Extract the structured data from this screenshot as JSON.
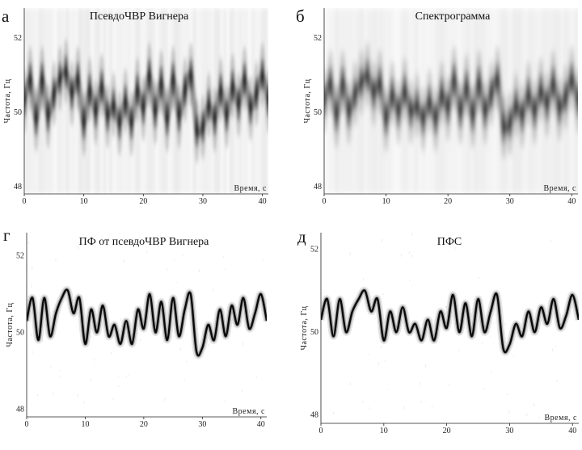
{
  "figure": {
    "panels": [
      {
        "letter": "а",
        "title": "ПсевдоЧВР Вигнера"
      },
      {
        "letter": "б",
        "title": "Спектрограмма"
      },
      {
        "letter": "г",
        "title": "ПФ от псевдоЧВР Вигнера"
      },
      {
        "letter": "д",
        "title": "ПФС"
      }
    ]
  },
  "chart_data": [
    {
      "type": "heatmap",
      "title": "ПсевдоЧВР Вигнера",
      "panel_label": "а",
      "xlabel": "Время, с",
      "ylabel": "Частота, Гц",
      "xlim": [
        0,
        41
      ],
      "ylim": [
        47.8,
        52.8
      ],
      "xticks": [
        0,
        10,
        20,
        30,
        40
      ],
      "yticks": [
        48,
        50,
        52
      ],
      "colormap": "white-to-black",
      "ridge": {
        "time_s": [
          0,
          1,
          2,
          3,
          4,
          5,
          6,
          7,
          8,
          9,
          10,
          11,
          12,
          13,
          14,
          15,
          16,
          17,
          18,
          19,
          20,
          21,
          22,
          23,
          24,
          25,
          26,
          27,
          28,
          29,
          30,
          31,
          32,
          33,
          34,
          35,
          36,
          37,
          38,
          39,
          40,
          41
        ],
        "freq_hz": [
          50.3,
          50.9,
          49.8,
          50.9,
          49.9,
          50.5,
          50.9,
          51.1,
          50.5,
          50.9,
          49.7,
          50.6,
          50.0,
          50.7,
          49.9,
          50.2,
          49.7,
          50.3,
          49.7,
          50.6,
          50.1,
          51.0,
          50.0,
          50.8,
          49.8,
          50.9,
          49.9,
          50.6,
          51.0,
          49.5,
          49.6,
          50.2,
          49.8,
          50.6,
          49.9,
          50.7,
          50.2,
          50.9,
          50.1,
          50.5,
          51.0,
          50.3
        ]
      }
    },
    {
      "type": "heatmap",
      "title": "Спектрограмма",
      "panel_label": "б",
      "xlabel": "Время, с",
      "ylabel": "Частота, Гц",
      "xlim": [
        0,
        41
      ],
      "ylim": [
        47.8,
        52.8
      ],
      "xticks": [
        0,
        10,
        20,
        30,
        40
      ],
      "yticks": [
        48,
        50,
        52
      ],
      "colormap": "white-to-black",
      "ridge": {
        "time_s": [
          0,
          1,
          2,
          3,
          4,
          5,
          6,
          7,
          8,
          9,
          10,
          11,
          12,
          13,
          14,
          15,
          16,
          17,
          18,
          19,
          20,
          21,
          22,
          23,
          24,
          25,
          26,
          27,
          28,
          29,
          30,
          31,
          32,
          33,
          34,
          35,
          36,
          37,
          38,
          39,
          40,
          41
        ],
        "freq_hz": [
          50.3,
          50.8,
          49.9,
          50.8,
          50.0,
          50.5,
          50.8,
          51.0,
          50.5,
          50.8,
          49.8,
          50.5,
          50.0,
          50.6,
          50.0,
          50.2,
          49.8,
          50.3,
          49.8,
          50.5,
          50.1,
          50.9,
          50.0,
          50.7,
          49.9,
          50.8,
          50.0,
          50.5,
          50.9,
          49.6,
          49.7,
          50.2,
          49.9,
          50.5,
          50.0,
          50.6,
          50.2,
          50.8,
          50.1,
          50.4,
          50.9,
          50.3
        ]
      }
    },
    {
      "type": "line",
      "title": "ПФ от псевдоЧВР Вигнера",
      "panel_label": "г",
      "xlabel": "Время, с",
      "ylabel": "Частота, Гц",
      "xlim": [
        0,
        41
      ],
      "ylim": [
        47.8,
        52.6
      ],
      "xticks": [
        0,
        10,
        20,
        30,
        40
      ],
      "yticks": [
        48,
        50,
        52
      ],
      "series": [
        {
          "x": [
            0,
            1,
            2,
            3,
            4,
            5,
            6,
            7,
            8,
            9,
            10,
            11,
            12,
            13,
            14,
            15,
            16,
            17,
            18,
            19,
            20,
            21,
            22,
            23,
            24,
            25,
            26,
            27,
            28,
            29,
            30,
            31,
            32,
            33,
            34,
            35,
            36,
            37,
            38,
            39,
            40,
            41
          ],
          "values": [
            50.3,
            50.9,
            49.8,
            50.9,
            49.9,
            50.5,
            50.9,
            51.1,
            50.5,
            50.9,
            49.7,
            50.6,
            50.0,
            50.7,
            49.9,
            50.2,
            49.7,
            50.3,
            49.7,
            50.6,
            50.1,
            51.0,
            50.0,
            50.8,
            49.8,
            50.9,
            49.9,
            50.6,
            51.0,
            49.5,
            49.6,
            50.2,
            49.8,
            50.6,
            49.9,
            50.7,
            50.2,
            50.9,
            50.1,
            50.5,
            51.0,
            50.3
          ]
        }
      ]
    },
    {
      "type": "line",
      "title": "ПФС",
      "panel_label": "д",
      "xlabel": "Время, с",
      "ylabel": "Частота, Гц",
      "xlim": [
        0,
        41
      ],
      "ylim": [
        47.8,
        52.4
      ],
      "xticks": [
        0,
        10,
        20,
        30,
        40
      ],
      "yticks": [
        48,
        50,
        52
      ],
      "series": [
        {
          "x": [
            0,
            1,
            2,
            3,
            4,
            5,
            6,
            7,
            8,
            9,
            10,
            11,
            12,
            13,
            14,
            15,
            16,
            17,
            18,
            19,
            20,
            21,
            22,
            23,
            24,
            25,
            26,
            27,
            28,
            29,
            30,
            31,
            32,
            33,
            34,
            35,
            36,
            37,
            38,
            39,
            40,
            41
          ],
          "values": [
            50.3,
            50.8,
            49.9,
            50.8,
            50.0,
            50.5,
            50.8,
            51.0,
            50.5,
            50.8,
            49.8,
            50.5,
            50.0,
            50.6,
            50.0,
            50.2,
            49.8,
            50.3,
            49.8,
            50.5,
            50.1,
            50.9,
            50.0,
            50.7,
            49.9,
            50.8,
            50.0,
            50.5,
            50.9,
            49.6,
            49.7,
            50.2,
            49.9,
            50.5,
            50.0,
            50.6,
            50.2,
            50.8,
            50.1,
            50.4,
            50.9,
            50.3
          ]
        }
      ]
    }
  ]
}
